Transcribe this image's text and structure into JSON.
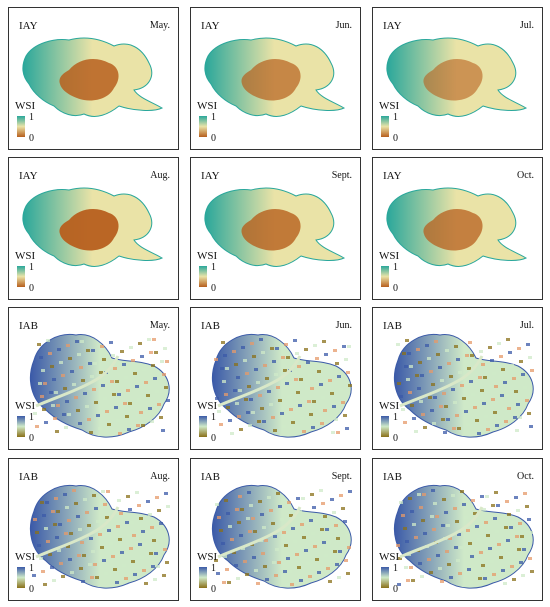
{
  "legend": {
    "title": "WSI",
    "max": "1",
    "min": "0"
  },
  "colors": {
    "iay_high": "#2aa79b",
    "iay_mid": "#eae3a7",
    "iay_low": "#b75f1d",
    "iab_high": "#3b5aa8",
    "iab_mid": "#cfe9c8",
    "iab_low": "#8a7019"
  },
  "panels": [
    {
      "region": "IAY",
      "month": "May."
    },
    {
      "region": "IAY",
      "month": "Jun."
    },
    {
      "region": "IAY",
      "month": "Jul."
    },
    {
      "region": "IAY",
      "month": "Aug."
    },
    {
      "region": "IAY",
      "month": "Sept."
    },
    {
      "region": "IAY",
      "month": "Oct."
    },
    {
      "region": "IAB",
      "month": "May."
    },
    {
      "region": "IAB",
      "month": "Jun."
    },
    {
      "region": "IAB",
      "month": "Jul."
    },
    {
      "region": "IAB",
      "month": "Aug."
    },
    {
      "region": "IAB",
      "month": "Sept."
    },
    {
      "region": "IAB",
      "month": "Oct."
    }
  ]
}
